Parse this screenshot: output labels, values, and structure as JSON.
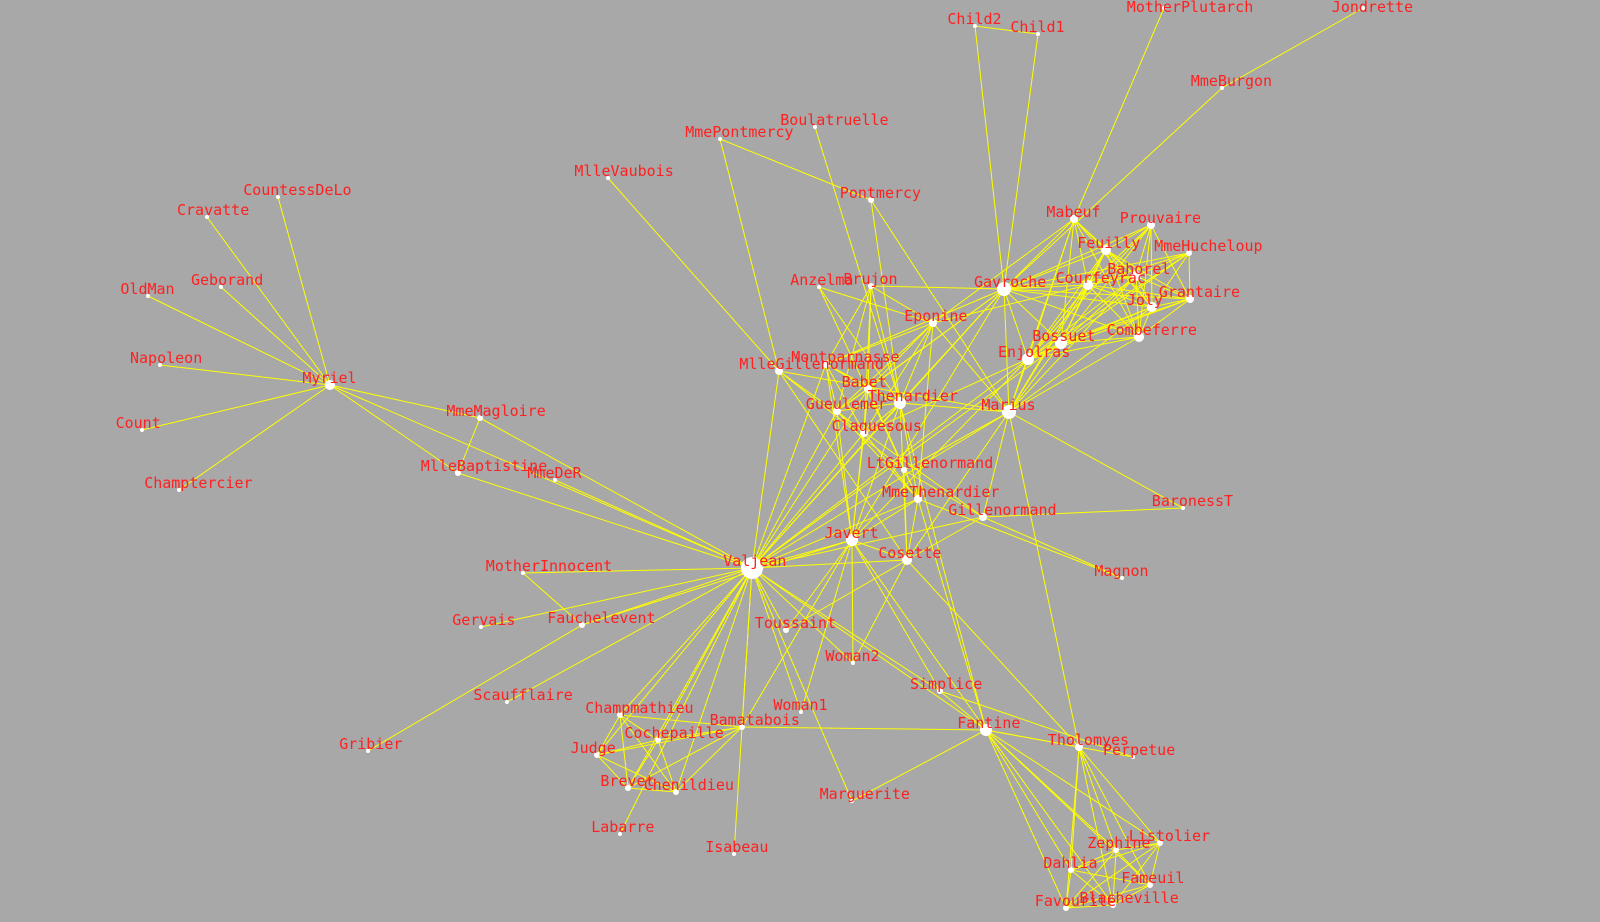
{
  "colors": {
    "background": "#a8a8a8",
    "edge": "#ffff00",
    "node": "#ffffff",
    "label": "#ff2020"
  },
  "nodes": [
    {
      "id": "Myriel",
      "label": "Myriel"
    },
    {
      "id": "Napoleon",
      "label": "Napoleon"
    },
    {
      "id": "MlleBaptistine",
      "label": "MlleBaptistine"
    },
    {
      "id": "MmeMagloire",
      "label": "MmeMagloire"
    },
    {
      "id": "CountessDeLo",
      "label": "CountessDeLo"
    },
    {
      "id": "Geborand",
      "label": "Geborand"
    },
    {
      "id": "Champtercier",
      "label": "Champtercier"
    },
    {
      "id": "Cravatte",
      "label": "Cravatte"
    },
    {
      "id": "Count",
      "label": "Count"
    },
    {
      "id": "OldMan",
      "label": "OldMan"
    },
    {
      "id": "Labarre",
      "label": "Labarre"
    },
    {
      "id": "Valjean",
      "label": "Valjean"
    },
    {
      "id": "Marguerite",
      "label": "Marguerite"
    },
    {
      "id": "MmeDeR",
      "label": "MmeDeR"
    },
    {
      "id": "Isabeau",
      "label": "Isabeau"
    },
    {
      "id": "Gervais",
      "label": "Gervais"
    },
    {
      "id": "Tholomyes",
      "label": "Tholomyes"
    },
    {
      "id": "Listolier",
      "label": "Listolier"
    },
    {
      "id": "Fameuil",
      "label": "Fameuil"
    },
    {
      "id": "Blacheville",
      "label": "Blacheville"
    },
    {
      "id": "Favourite",
      "label": "Favourite"
    },
    {
      "id": "Dahlia",
      "label": "Dahlia"
    },
    {
      "id": "Zephine",
      "label": "Zephine"
    },
    {
      "id": "Fantine",
      "label": "Fantine"
    },
    {
      "id": "MmeThenardier",
      "label": "MmeThenardier"
    },
    {
      "id": "Thenardier",
      "label": "Thenardier"
    },
    {
      "id": "Cosette",
      "label": "Cosette"
    },
    {
      "id": "Javert",
      "label": "Javert"
    },
    {
      "id": "Fauchelevent",
      "label": "Fauchelevent"
    },
    {
      "id": "Bamatabois",
      "label": "Bamatabois"
    },
    {
      "id": "Perpetue",
      "label": "Perpetue"
    },
    {
      "id": "Simplice",
      "label": "Simplice"
    },
    {
      "id": "Scaufflaire",
      "label": "Scaufflaire"
    },
    {
      "id": "Woman1",
      "label": "Woman1"
    },
    {
      "id": "Judge",
      "label": "Judge"
    },
    {
      "id": "Champmathieu",
      "label": "Champmathieu"
    },
    {
      "id": "Brevet",
      "label": "Brevet"
    },
    {
      "id": "Chenildieu",
      "label": "Chenildieu"
    },
    {
      "id": "Cochepaille",
      "label": "Cochepaille"
    },
    {
      "id": "Pontmercy",
      "label": "Pontmercy"
    },
    {
      "id": "Boulatruelle",
      "label": "Boulatruelle"
    },
    {
      "id": "Eponine",
      "label": "Eponine"
    },
    {
      "id": "Anzelma",
      "label": "Anzelma"
    },
    {
      "id": "Woman2",
      "label": "Woman2"
    },
    {
      "id": "MotherInnocent",
      "label": "MotherInnocent"
    },
    {
      "id": "Gribier",
      "label": "Gribier"
    },
    {
      "id": "Jondrette",
      "label": "Jondrette"
    },
    {
      "id": "MmeBurgon",
      "label": "MmeBurgon"
    },
    {
      "id": "Gavroche",
      "label": "Gavroche"
    },
    {
      "id": "Gillenormand",
      "label": "Gillenormand"
    },
    {
      "id": "Magnon",
      "label": "Magnon"
    },
    {
      "id": "MlleGillenormand",
      "label": "MlleGillenormand"
    },
    {
      "id": "MmePontmercy",
      "label": "MmePontmercy"
    },
    {
      "id": "MlleVaubois",
      "label": "MlleVaubois"
    },
    {
      "id": "LtGillenormand",
      "label": "LtGillenormand"
    },
    {
      "id": "Marius",
      "label": "Marius"
    },
    {
      "id": "BaronessT",
      "label": "BaronessT"
    },
    {
      "id": "Mabeuf",
      "label": "Mabeuf"
    },
    {
      "id": "Enjolras",
      "label": "Enjolras"
    },
    {
      "id": "Combeferre",
      "label": "Combeferre"
    },
    {
      "id": "Prouvaire",
      "label": "Prouvaire"
    },
    {
      "id": "Feuilly",
      "label": "Feuilly"
    },
    {
      "id": "Courfeyrac",
      "label": "Courfeyrac"
    },
    {
      "id": "Bahorel",
      "label": "Bahorel"
    },
    {
      "id": "Bossuet",
      "label": "Bossuet"
    },
    {
      "id": "Joly",
      "label": "Joly"
    },
    {
      "id": "Grantaire",
      "label": "Grantaire"
    },
    {
      "id": "MotherPlutarch",
      "label": "MotherPlutarch"
    },
    {
      "id": "Gueulemer",
      "label": "Gueulemer"
    },
    {
      "id": "Babet",
      "label": "Babet"
    },
    {
      "id": "Claquesous",
      "label": "Claquesous"
    },
    {
      "id": "Montparnasse",
      "label": "Montparnasse"
    },
    {
      "id": "Toussaint",
      "label": "Toussaint"
    },
    {
      "id": "Child1",
      "label": "Child1"
    },
    {
      "id": "Child2",
      "label": "Child2"
    },
    {
      "id": "Brujon",
      "label": "Brujon"
    },
    {
      "id": "MmeHucheloup",
      "label": "MmeHucheloup"
    }
  ],
  "edges": [
    [
      "Napoleon",
      "Myriel"
    ],
    [
      "MlleBaptistine",
      "Myriel"
    ],
    [
      "MmeMagloire",
      "Myriel"
    ],
    [
      "MmeMagloire",
      "MlleBaptistine"
    ],
    [
      "CountessDeLo",
      "Myriel"
    ],
    [
      "Geborand",
      "Myriel"
    ],
    [
      "Champtercier",
      "Myriel"
    ],
    [
      "Cravatte",
      "Myriel"
    ],
    [
      "Count",
      "Myriel"
    ],
    [
      "OldMan",
      "Myriel"
    ],
    [
      "Valjean",
      "Labarre"
    ],
    [
      "Valjean",
      "MmeMagloire"
    ],
    [
      "Valjean",
      "MlleBaptistine"
    ],
    [
      "Valjean",
      "Myriel"
    ],
    [
      "Marguerite",
      "Valjean"
    ],
    [
      "MmeDeR",
      "Valjean"
    ],
    [
      "Isabeau",
      "Valjean"
    ],
    [
      "Gervais",
      "Valjean"
    ],
    [
      "Listolier",
      "Tholomyes"
    ],
    [
      "Fameuil",
      "Tholomyes"
    ],
    [
      "Fameuil",
      "Listolier"
    ],
    [
      "Blacheville",
      "Tholomyes"
    ],
    [
      "Blacheville",
      "Listolier"
    ],
    [
      "Blacheville",
      "Fameuil"
    ],
    [
      "Favourite",
      "Tholomyes"
    ],
    [
      "Favourite",
      "Listolier"
    ],
    [
      "Favourite",
      "Fameuil"
    ],
    [
      "Favourite",
      "Blacheville"
    ],
    [
      "Dahlia",
      "Tholomyes"
    ],
    [
      "Dahlia",
      "Listolier"
    ],
    [
      "Dahlia",
      "Fameuil"
    ],
    [
      "Dahlia",
      "Blacheville"
    ],
    [
      "Dahlia",
      "Favourite"
    ],
    [
      "Zephine",
      "Tholomyes"
    ],
    [
      "Zephine",
      "Listolier"
    ],
    [
      "Zephine",
      "Fameuil"
    ],
    [
      "Zephine",
      "Blacheville"
    ],
    [
      "Zephine",
      "Favourite"
    ],
    [
      "Zephine",
      "Dahlia"
    ],
    [
      "Fantine",
      "Tholomyes"
    ],
    [
      "Fantine",
      "Listolier"
    ],
    [
      "Fantine",
      "Fameuil"
    ],
    [
      "Fantine",
      "Blacheville"
    ],
    [
      "Fantine",
      "Favourite"
    ],
    [
      "Fantine",
      "Dahlia"
    ],
    [
      "Fantine",
      "Zephine"
    ],
    [
      "Fantine",
      "Marguerite"
    ],
    [
      "Fantine",
      "Valjean"
    ],
    [
      "MmeThenardier",
      "Fantine"
    ],
    [
      "MmeThenardier",
      "Valjean"
    ],
    [
      "Thenardier",
      "MmeThenardier"
    ],
    [
      "Thenardier",
      "Fantine"
    ],
    [
      "Thenardier",
      "Valjean"
    ],
    [
      "Cosette",
      "MmeThenardier"
    ],
    [
      "Cosette",
      "Valjean"
    ],
    [
      "Cosette",
      "Tholomyes"
    ],
    [
      "Cosette",
      "Thenardier"
    ],
    [
      "Javert",
      "Valjean"
    ],
    [
      "Javert",
      "Fantine"
    ],
    [
      "Javert",
      "Thenardier"
    ],
    [
      "Javert",
      "MmeThenardier"
    ],
    [
      "Javert",
      "Cosette"
    ],
    [
      "Fauchelevent",
      "Valjean"
    ],
    [
      "Fauchelevent",
      "Javert"
    ],
    [
      "Bamatabois",
      "Fantine"
    ],
    [
      "Bamatabois",
      "Javert"
    ],
    [
      "Bamatabois",
      "Valjean"
    ],
    [
      "Perpetue",
      "Fantine"
    ],
    [
      "Simplice",
      "Perpetue"
    ],
    [
      "Simplice",
      "Valjean"
    ],
    [
      "Simplice",
      "Fantine"
    ],
    [
      "Simplice",
      "Javert"
    ],
    [
      "Scaufflaire",
      "Valjean"
    ],
    [
      "Woman1",
      "Valjean"
    ],
    [
      "Woman1",
      "Javert"
    ],
    [
      "Judge",
      "Valjean"
    ],
    [
      "Judge",
      "Bamatabois"
    ],
    [
      "Champmathieu",
      "Valjean"
    ],
    [
      "Champmathieu",
      "Judge"
    ],
    [
      "Champmathieu",
      "Bamatabois"
    ],
    [
      "Brevet",
      "Judge"
    ],
    [
      "Brevet",
      "Champmathieu"
    ],
    [
      "Brevet",
      "Valjean"
    ],
    [
      "Brevet",
      "Bamatabois"
    ],
    [
      "Chenildieu",
      "Judge"
    ],
    [
      "Chenildieu",
      "Champmathieu"
    ],
    [
      "Chenildieu",
      "Brevet"
    ],
    [
      "Chenildieu",
      "Valjean"
    ],
    [
      "Chenildieu",
      "Bamatabois"
    ],
    [
      "Cochepaille",
      "Judge"
    ],
    [
      "Cochepaille",
      "Champmathieu"
    ],
    [
      "Cochepaille",
      "Brevet"
    ],
    [
      "Cochepaille",
      "Chenildieu"
    ],
    [
      "Cochepaille",
      "Valjean"
    ],
    [
      "Cochepaille",
      "Bamatabois"
    ],
    [
      "Pontmercy",
      "Thenardier"
    ],
    [
      "Boulatruelle",
      "Thenardier"
    ],
    [
      "Eponine",
      "MmeThenardier"
    ],
    [
      "Eponine",
      "Thenardier"
    ],
    [
      "Anzelma",
      "Eponine"
    ],
    [
      "Anzelma",
      "Thenardier"
    ],
    [
      "Anzelma",
      "MmeThenardier"
    ],
    [
      "Woman2",
      "Valjean"
    ],
    [
      "Woman2",
      "Cosette"
    ],
    [
      "Woman2",
      "Javert"
    ],
    [
      "MotherInnocent",
      "Fauchelevent"
    ],
    [
      "MotherInnocent",
      "Valjean"
    ],
    [
      "Gribier",
      "Fauchelevent"
    ],
    [
      "MmeBurgon",
      "Jondrette"
    ],
    [
      "Gavroche",
      "MmeBurgon"
    ],
    [
      "Gavroche",
      "Thenardier"
    ],
    [
      "Gavroche",
      "Javert"
    ],
    [
      "Gavroche",
      "Valjean"
    ],
    [
      "Gillenormand",
      "Cosette"
    ],
    [
      "Gillenormand",
      "Valjean"
    ],
    [
      "Magnon",
      "Gillenormand"
    ],
    [
      "Magnon",
      "MmeThenardier"
    ],
    [
      "MlleGillenormand",
      "Gillenormand"
    ],
    [
      "MlleGillenormand",
      "Cosette"
    ],
    [
      "MlleGillenormand",
      "Valjean"
    ],
    [
      "MmePontmercy",
      "MlleGillenormand"
    ],
    [
      "MmePontmercy",
      "Pontmercy"
    ],
    [
      "MlleVaubois",
      "MlleGillenormand"
    ],
    [
      "LtGillenormand",
      "MlleGillenormand"
    ],
    [
      "LtGillenormand",
      "Gillenormand"
    ],
    [
      "LtGillenormand",
      "Cosette"
    ],
    [
      "Marius",
      "MlleGillenormand"
    ],
    [
      "Marius",
      "Gillenormand"
    ],
    [
      "Marius",
      "Pontmercy"
    ],
    [
      "Marius",
      "LtGillenormand"
    ],
    [
      "Marius",
      "Cosette"
    ],
    [
      "Marius",
      "Valjean"
    ],
    [
      "Marius",
      "Tholomyes"
    ],
    [
      "Marius",
      "Thenardier"
    ],
    [
      "Marius",
      "Eponine"
    ],
    [
      "Marius",
      "Gavroche"
    ],
    [
      "BaronessT",
      "Gillenormand"
    ],
    [
      "BaronessT",
      "Marius"
    ],
    [
      "Mabeuf",
      "Marius"
    ],
    [
      "Mabeuf",
      "Eponine"
    ],
    [
      "Mabeuf",
      "Gavroche"
    ],
    [
      "Enjolras",
      "Marius"
    ],
    [
      "Enjolras",
      "Gavroche"
    ],
    [
      "Enjolras",
      "Javert"
    ],
    [
      "Enjolras",
      "Mabeuf"
    ],
    [
      "Enjolras",
      "Valjean"
    ],
    [
      "Combeferre",
      "Enjolras"
    ],
    [
      "Combeferre",
      "Marius"
    ],
    [
      "Combeferre",
      "Gavroche"
    ],
    [
      "Combeferre",
      "Mabeuf"
    ],
    [
      "Prouvaire",
      "Gavroche"
    ],
    [
      "Prouvaire",
      "Enjolras"
    ],
    [
      "Prouvaire",
      "Combeferre"
    ],
    [
      "Feuilly",
      "Gavroche"
    ],
    [
      "Feuilly",
      "Enjolras"
    ],
    [
      "Feuilly",
      "Prouvaire"
    ],
    [
      "Feuilly",
      "Combeferre"
    ],
    [
      "Feuilly",
      "Mabeuf"
    ],
    [
      "Feuilly",
      "Marius"
    ],
    [
      "Courfeyrac",
      "Marius"
    ],
    [
      "Courfeyrac",
      "Enjolras"
    ],
    [
      "Courfeyrac",
      "Combeferre"
    ],
    [
      "Courfeyrac",
      "Gavroche"
    ],
    [
      "Courfeyrac",
      "Mabeuf"
    ],
    [
      "Courfeyrac",
      "Eponine"
    ],
    [
      "Courfeyrac",
      "Feuilly"
    ],
    [
      "Courfeyrac",
      "Prouvaire"
    ],
    [
      "Bahorel",
      "Combeferre"
    ],
    [
      "Bahorel",
      "Gavroche"
    ],
    [
      "Bahorel",
      "Courfeyrac"
    ],
    [
      "Bahorel",
      "Mabeuf"
    ],
    [
      "Bahorel",
      "Enjolras"
    ],
    [
      "Bahorel",
      "Feuilly"
    ],
    [
      "Bahorel",
      "Prouvaire"
    ],
    [
      "Bahorel",
      "Marius"
    ],
    [
      "Bossuet",
      "Marius"
    ],
    [
      "Bossuet",
      "Courfeyrac"
    ],
    [
      "Bossuet",
      "Gavroche"
    ],
    [
      "Bossuet",
      "Bahorel"
    ],
    [
      "Bossuet",
      "Enjolras"
    ],
    [
      "Bossuet",
      "Feuilly"
    ],
    [
      "Bossuet",
      "Prouvaire"
    ],
    [
      "Bossuet",
      "Combeferre"
    ],
    [
      "Bossuet",
      "Mabeuf"
    ],
    [
      "Bossuet",
      "Valjean"
    ],
    [
      "Joly",
      "Bahorel"
    ],
    [
      "Joly",
      "Bossuet"
    ],
    [
      "Joly",
      "Gavroche"
    ],
    [
      "Joly",
      "Courfeyrac"
    ],
    [
      "Joly",
      "Enjolras"
    ],
    [
      "Joly",
      "Feuilly"
    ],
    [
      "Joly",
      "Prouvaire"
    ],
    [
      "Joly",
      "Combeferre"
    ],
    [
      "Joly",
      "Mabeuf"
    ],
    [
      "Joly",
      "Marius"
    ],
    [
      "Grantaire",
      "Bossuet"
    ],
    [
      "Grantaire",
      "Enjolras"
    ],
    [
      "Grantaire",
      "Combeferre"
    ],
    [
      "Grantaire",
      "Courfeyrac"
    ],
    [
      "Grantaire",
      "Joly"
    ],
    [
      "Grantaire",
      "Gavroche"
    ],
    [
      "Grantaire",
      "Bahorel"
    ],
    [
      "Grantaire",
      "Feuilly"
    ],
    [
      "Grantaire",
      "Prouvaire"
    ],
    [
      "MotherPlutarch",
      "Mabeuf"
    ],
    [
      "Gueulemer",
      "Thenardier"
    ],
    [
      "Gueulemer",
      "Valjean"
    ],
    [
      "Gueulemer",
      "MmeThenardier"
    ],
    [
      "Gueulemer",
      "Javert"
    ],
    [
      "Gueulemer",
      "Gavroche"
    ],
    [
      "Gueulemer",
      "Eponine"
    ],
    [
      "Babet",
      "Thenardier"
    ],
    [
      "Babet",
      "Gueulemer"
    ],
    [
      "Babet",
      "Valjean"
    ],
    [
      "Babet",
      "MmeThenardier"
    ],
    [
      "Babet",
      "Javert"
    ],
    [
      "Babet",
      "Gavroche"
    ],
    [
      "Babet",
      "Eponine"
    ],
    [
      "Claquesous",
      "Thenardier"
    ],
    [
      "Claquesous",
      "Babet"
    ],
    [
      "Claquesous",
      "Gueulemer"
    ],
    [
      "Claquesous",
      "Valjean"
    ],
    [
      "Claquesous",
      "MmeThenardier"
    ],
    [
      "Claquesous",
      "Javert"
    ],
    [
      "Claquesous",
      "Eponine"
    ],
    [
      "Claquesous",
      "Enjolras"
    ],
    [
      "Montparnasse",
      "Javert"
    ],
    [
      "Montparnasse",
      "Babet"
    ],
    [
      "Montparnasse",
      "Gueulemer"
    ],
    [
      "Montparnasse",
      "Claquesous"
    ],
    [
      "Montparnasse",
      "Valjean"
    ],
    [
      "Montparnasse",
      "Gavroche"
    ],
    [
      "Montparnasse",
      "Eponine"
    ],
    [
      "Montparnasse",
      "Thenardier"
    ],
    [
      "Toussaint",
      "Cosette"
    ],
    [
      "Toussaint",
      "Javert"
    ],
    [
      "Toussaint",
      "Valjean"
    ],
    [
      "Child1",
      "Gavroche"
    ],
    [
      "Child2",
      "Gavroche"
    ],
    [
      "Child2",
      "Child1"
    ],
    [
      "Brujon",
      "Babet"
    ],
    [
      "Brujon",
      "Gueulemer"
    ],
    [
      "Brujon",
      "Thenardier"
    ],
    [
      "Brujon",
      "Gavroche"
    ],
    [
      "Brujon",
      "Eponine"
    ],
    [
      "Brujon",
      "Claquesous"
    ],
    [
      "Brujon",
      "Montparnasse"
    ],
    [
      "MmeHucheloup",
      "Bossuet"
    ],
    [
      "MmeHucheloup",
      "Joly"
    ],
    [
      "MmeHucheloup",
      "Grantaire"
    ],
    [
      "MmeHucheloup",
      "Bahorel"
    ],
    [
      "MmeHucheloup",
      "Courfeyrac"
    ],
    [
      "MmeHucheloup",
      "Gavroche"
    ],
    [
      "MmeHucheloup",
      "Enjolras"
    ]
  ]
}
